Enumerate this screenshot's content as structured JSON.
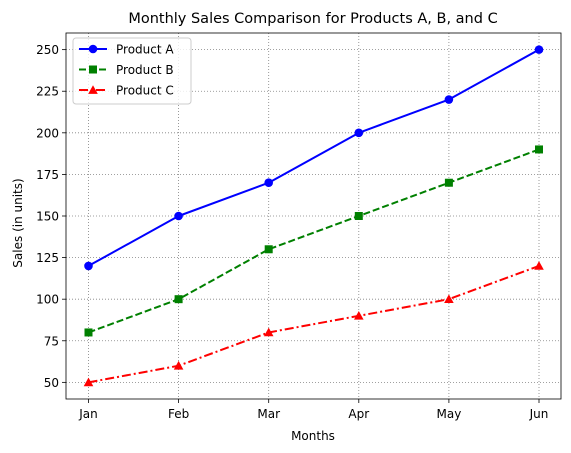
{
  "chart_data": {
    "type": "line",
    "title": "Monthly Sales Comparison for Products A, B, and C",
    "xlabel": "Months",
    "ylabel": "Sales (in units)",
    "categories": [
      "Jan",
      "Feb",
      "Mar",
      "Apr",
      "May",
      "Jun"
    ],
    "ylim": [
      40,
      260
    ],
    "yticks": [
      50,
      75,
      100,
      125,
      150,
      175,
      200,
      225,
      250
    ],
    "grid": true,
    "legend_position": "top-left",
    "series": [
      {
        "name": "Product A",
        "values": [
          120,
          150,
          170,
          200,
          220,
          250
        ],
        "color": "#0000ff",
        "line_style": "solid",
        "marker": "circle"
      },
      {
        "name": "Product B",
        "values": [
          80,
          100,
          130,
          150,
          170,
          190
        ],
        "color": "#008000",
        "line_style": "dashed",
        "marker": "square"
      },
      {
        "name": "Product C",
        "values": [
          50,
          60,
          80,
          90,
          100,
          120
        ],
        "color": "#ff0000",
        "line_style": "dashdot",
        "marker": "triangle"
      }
    ]
  }
}
